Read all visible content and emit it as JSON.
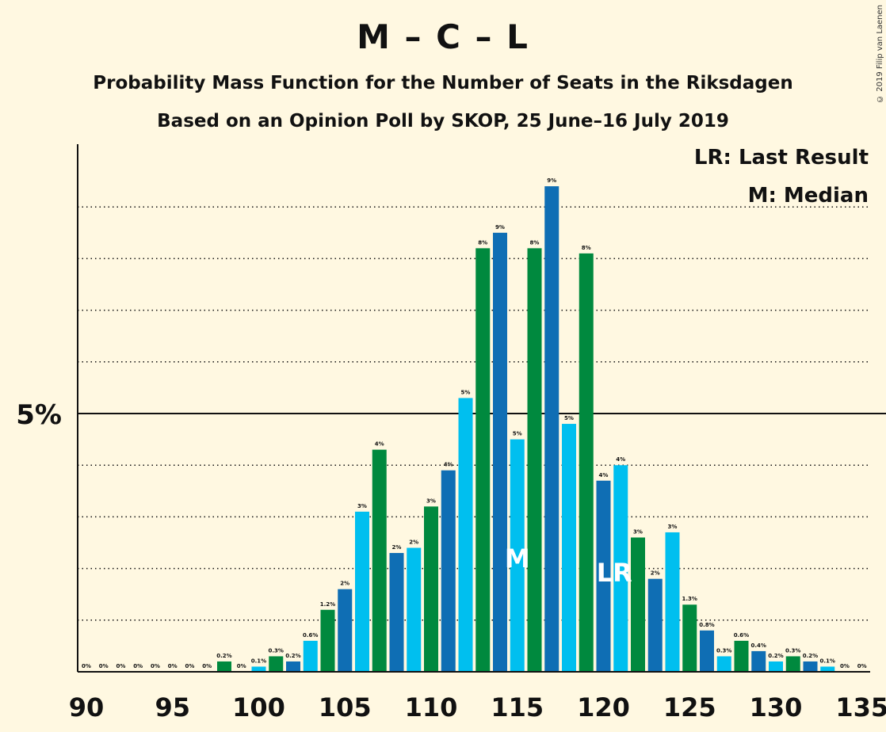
{
  "header": {
    "title": "M – C – L",
    "subtitle": "Probability Mass Function for the Number of Seats in the Riksdagen",
    "subtitle2": "Based on an Opinion Poll by SKOP, 25 June–16 July 2019",
    "copyright": "© 2019 Filip van Laenen"
  },
  "legend": {
    "last_result": "LR: Last Result",
    "median": "M: Median"
  },
  "colors": {
    "background": "#FFF8E1",
    "series": [
      "#0F6EB4",
      "#00BFEF",
      "#00893E"
    ]
  },
  "chart_data": {
    "type": "bar",
    "x": [
      90,
      91,
      92,
      93,
      94,
      95,
      96,
      97,
      98,
      99,
      100,
      101,
      102,
      103,
      104,
      105,
      106,
      107,
      108,
      109,
      110,
      111,
      112,
      113,
      114,
      115,
      116,
      117,
      118,
      119,
      120,
      121,
      122,
      123,
      124,
      125,
      126,
      127,
      128,
      129,
      130,
      131,
      132,
      133,
      134,
      135
    ],
    "values": [
      0,
      0,
      0,
      0,
      0,
      0,
      0,
      0,
      0.2,
      0,
      0.1,
      0.3,
      0.2,
      0.6,
      1.2,
      1.6,
      3.1,
      4.3,
      2.3,
      2.4,
      3.2,
      3.9,
      5.3,
      8.2,
      8.5,
      4.5,
      8.2,
      9.4,
      4.8,
      8.1,
      3.7,
      4.0,
      2.6,
      1.8,
      2.7,
      1.3,
      0.8,
      0.3,
      0.6,
      0.4,
      0.2,
      0.3,
      0.2,
      0.1,
      0,
      0
    ],
    "labels": [
      "0%",
      "0%",
      "0%",
      "0%",
      "0%",
      "0%",
      "0%",
      "0%",
      "0.2%",
      "0%",
      "0.1%",
      "0.3%",
      "0.2%",
      "0.6%",
      "1.2%",
      "2%",
      "3%",
      "4%",
      "2%",
      "2%",
      "3%",
      "4%",
      "5%",
      "8%",
      "9%",
      "5%",
      "8%",
      "9%",
      "5%",
      "8%",
      "4%",
      "4%",
      "3%",
      "2%",
      "3%",
      "1.3%",
      "0.8%",
      "0.3%",
      "0.6%",
      "0.4%",
      "0.2%",
      "0.3%",
      "0.2%",
      "0.1%",
      "0%",
      "0%"
    ],
    "xticks": [
      90,
      95,
      100,
      105,
      110,
      115,
      120,
      125,
      130,
      135
    ],
    "ytick_label": "5%",
    "ytick_value": 5,
    "gridlines": [
      1,
      2,
      3,
      4,
      6,
      7,
      8,
      9
    ],
    "ylim": [
      0,
      10.2
    ],
    "median": 115,
    "median_label": "M",
    "last_result": 121,
    "last_result_label": "LR"
  }
}
